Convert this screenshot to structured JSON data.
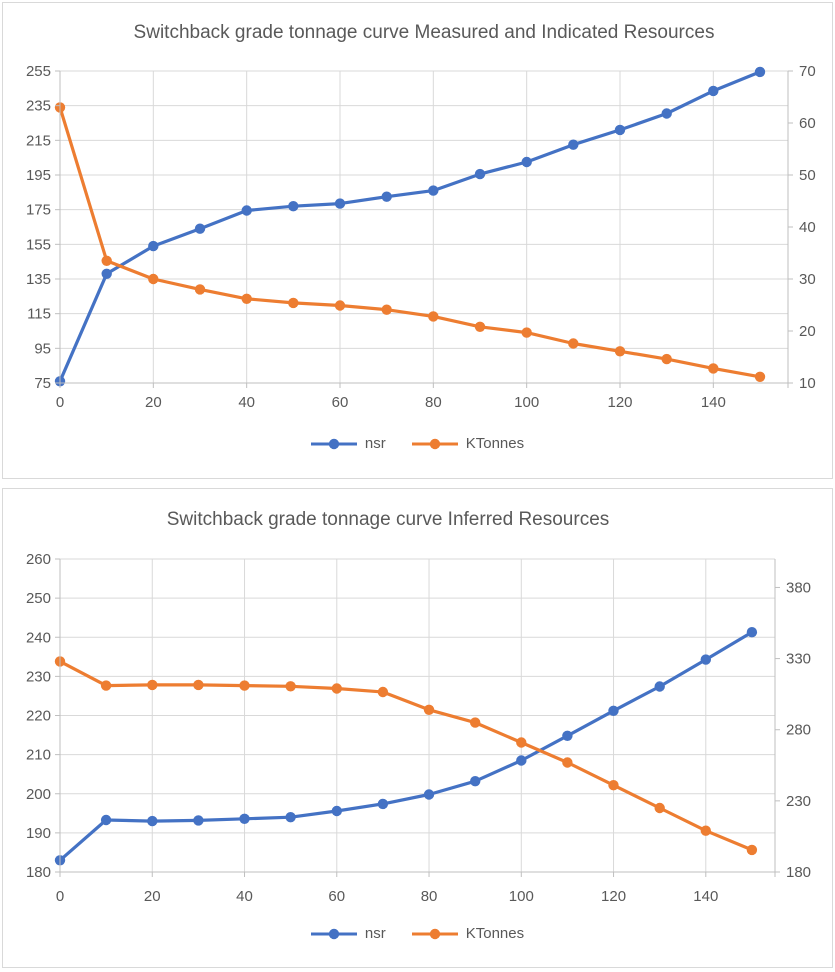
{
  "colors": {
    "nsr": "#4472C4",
    "ktonnes": "#ED7D31",
    "grid": "#D9D9D9",
    "axis_line": "#BFBFBF",
    "text": "#595959",
    "card_border": "#D9D9D9",
    "background": "#FFFFFF"
  },
  "chart_data": [
    {
      "type": "line",
      "title": "Switchback grade tonnage curve Measured and Indicated Resources",
      "x": [
        0,
        10,
        20,
        30,
        40,
        50,
        60,
        70,
        80,
        90,
        100,
        110,
        120,
        130,
        140,
        150
      ],
      "series": [
        {
          "name": "nsr",
          "axis": "left",
          "color": "#4472C4",
          "values": [
            76,
            138,
            154,
            164,
            174.5,
            177,
            178.5,
            182.5,
            186,
            195.5,
            202.5,
            212.5,
            221,
            230.5,
            243.5,
            254.5
          ]
        },
        {
          "name": "KTonnes",
          "axis": "right",
          "color": "#ED7D31",
          "values": [
            63,
            33.5,
            30,
            28,
            26.2,
            25.4,
            24.9,
            24.1,
            22.8,
            20.8,
            19.7,
            17.6,
            16.1,
            14.6,
            12.8,
            11.2
          ]
        }
      ],
      "left_axis": {
        "min": 75,
        "max": 255,
        "ticks": [
          75,
          95,
          115,
          135,
          155,
          175,
          195,
          215,
          235,
          255
        ]
      },
      "right_axis": {
        "min": 10,
        "max": 70,
        "ticks": [
          10,
          20,
          30,
          40,
          50,
          60,
          70
        ]
      },
      "x_axis": {
        "min": 0,
        "max": 156,
        "ticks": [
          0,
          20,
          40,
          60,
          80,
          100,
          120,
          140
        ]
      },
      "grid": true,
      "legend_position": "bottom"
    },
    {
      "type": "line",
      "title": "Switchback grade tonnage curve Inferred Resources",
      "x": [
        0,
        10,
        20,
        30,
        40,
        50,
        60,
        70,
        80,
        90,
        100,
        110,
        120,
        130,
        140,
        150
      ],
      "series": [
        {
          "name": "nsr",
          "axis": "left",
          "color": "#4472C4",
          "values": [
            183,
            193.3,
            193,
            193.2,
            193.6,
            194,
            195.6,
            197.4,
            199.8,
            203.2,
            208.5,
            214.8,
            221.2,
            227.4,
            234.3,
            241.3
          ]
        },
        {
          "name": "KTonnes",
          "axis": "right",
          "color": "#ED7D31",
          "values": [
            328,
            311,
            311.5,
            311.5,
            311,
            310.5,
            309,
            306.5,
            294,
            285,
            271,
            257,
            241,
            225,
            209,
            195.5
          ]
        }
      ],
      "left_axis": {
        "min": 180,
        "max": 260,
        "ticks": [
          180,
          190,
          200,
          210,
          220,
          230,
          240,
          250,
          260
        ]
      },
      "right_axis": {
        "min": 180,
        "max": 400,
        "ticks": [
          180,
          230,
          280,
          330,
          380
        ]
      },
      "x_axis": {
        "min": 0,
        "max": 155,
        "ticks": [
          0,
          20,
          40,
          60,
          80,
          100,
          120,
          140
        ]
      },
      "grid": true,
      "legend_position": "bottom"
    }
  ]
}
